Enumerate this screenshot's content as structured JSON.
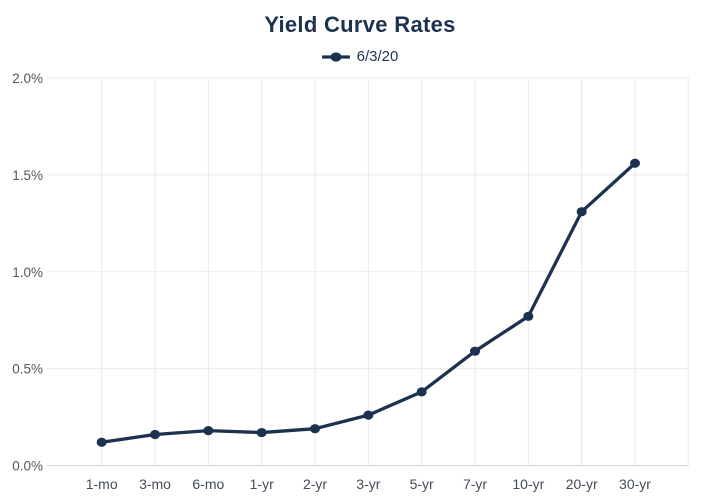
{
  "page": {
    "background": "#ffffff"
  },
  "chart_data": {
    "type": "line",
    "title": "Yield Curve Rates",
    "categories": [
      "1-mo",
      "3-mo",
      "6-mo",
      "1-yr",
      "2-yr",
      "3-yr",
      "5-yr",
      "7-yr",
      "10-yr",
      "20-yr",
      "30-yr"
    ],
    "series": [
      {
        "name": "6/3/20",
        "values": [
          0.12,
          0.16,
          0.18,
          0.17,
          0.19,
          0.26,
          0.38,
          0.59,
          0.77,
          1.31,
          1.56
        ],
        "color": "#1d3150",
        "marker": "filled-dot"
      }
    ],
    "xlabel": "",
    "ylabel": "",
    "ylim": [
      0,
      2
    ],
    "y_ticks": [
      0,
      0.5,
      1,
      1.5,
      2
    ],
    "y_tick_labels": [
      "0.0%",
      "0.5%",
      "1.0%",
      "1.5%",
      "2.0%"
    ],
    "grid": "on",
    "legend_position": "top-center",
    "colors": {
      "line": "#1d3150",
      "grid": "#e9e9e9",
      "axis": "#d6d6d6",
      "y_tick_text": "#53585f",
      "x_tick_text": "#454c55",
      "title_text": "#1d3150",
      "legend_text": "#1e3252"
    }
  }
}
